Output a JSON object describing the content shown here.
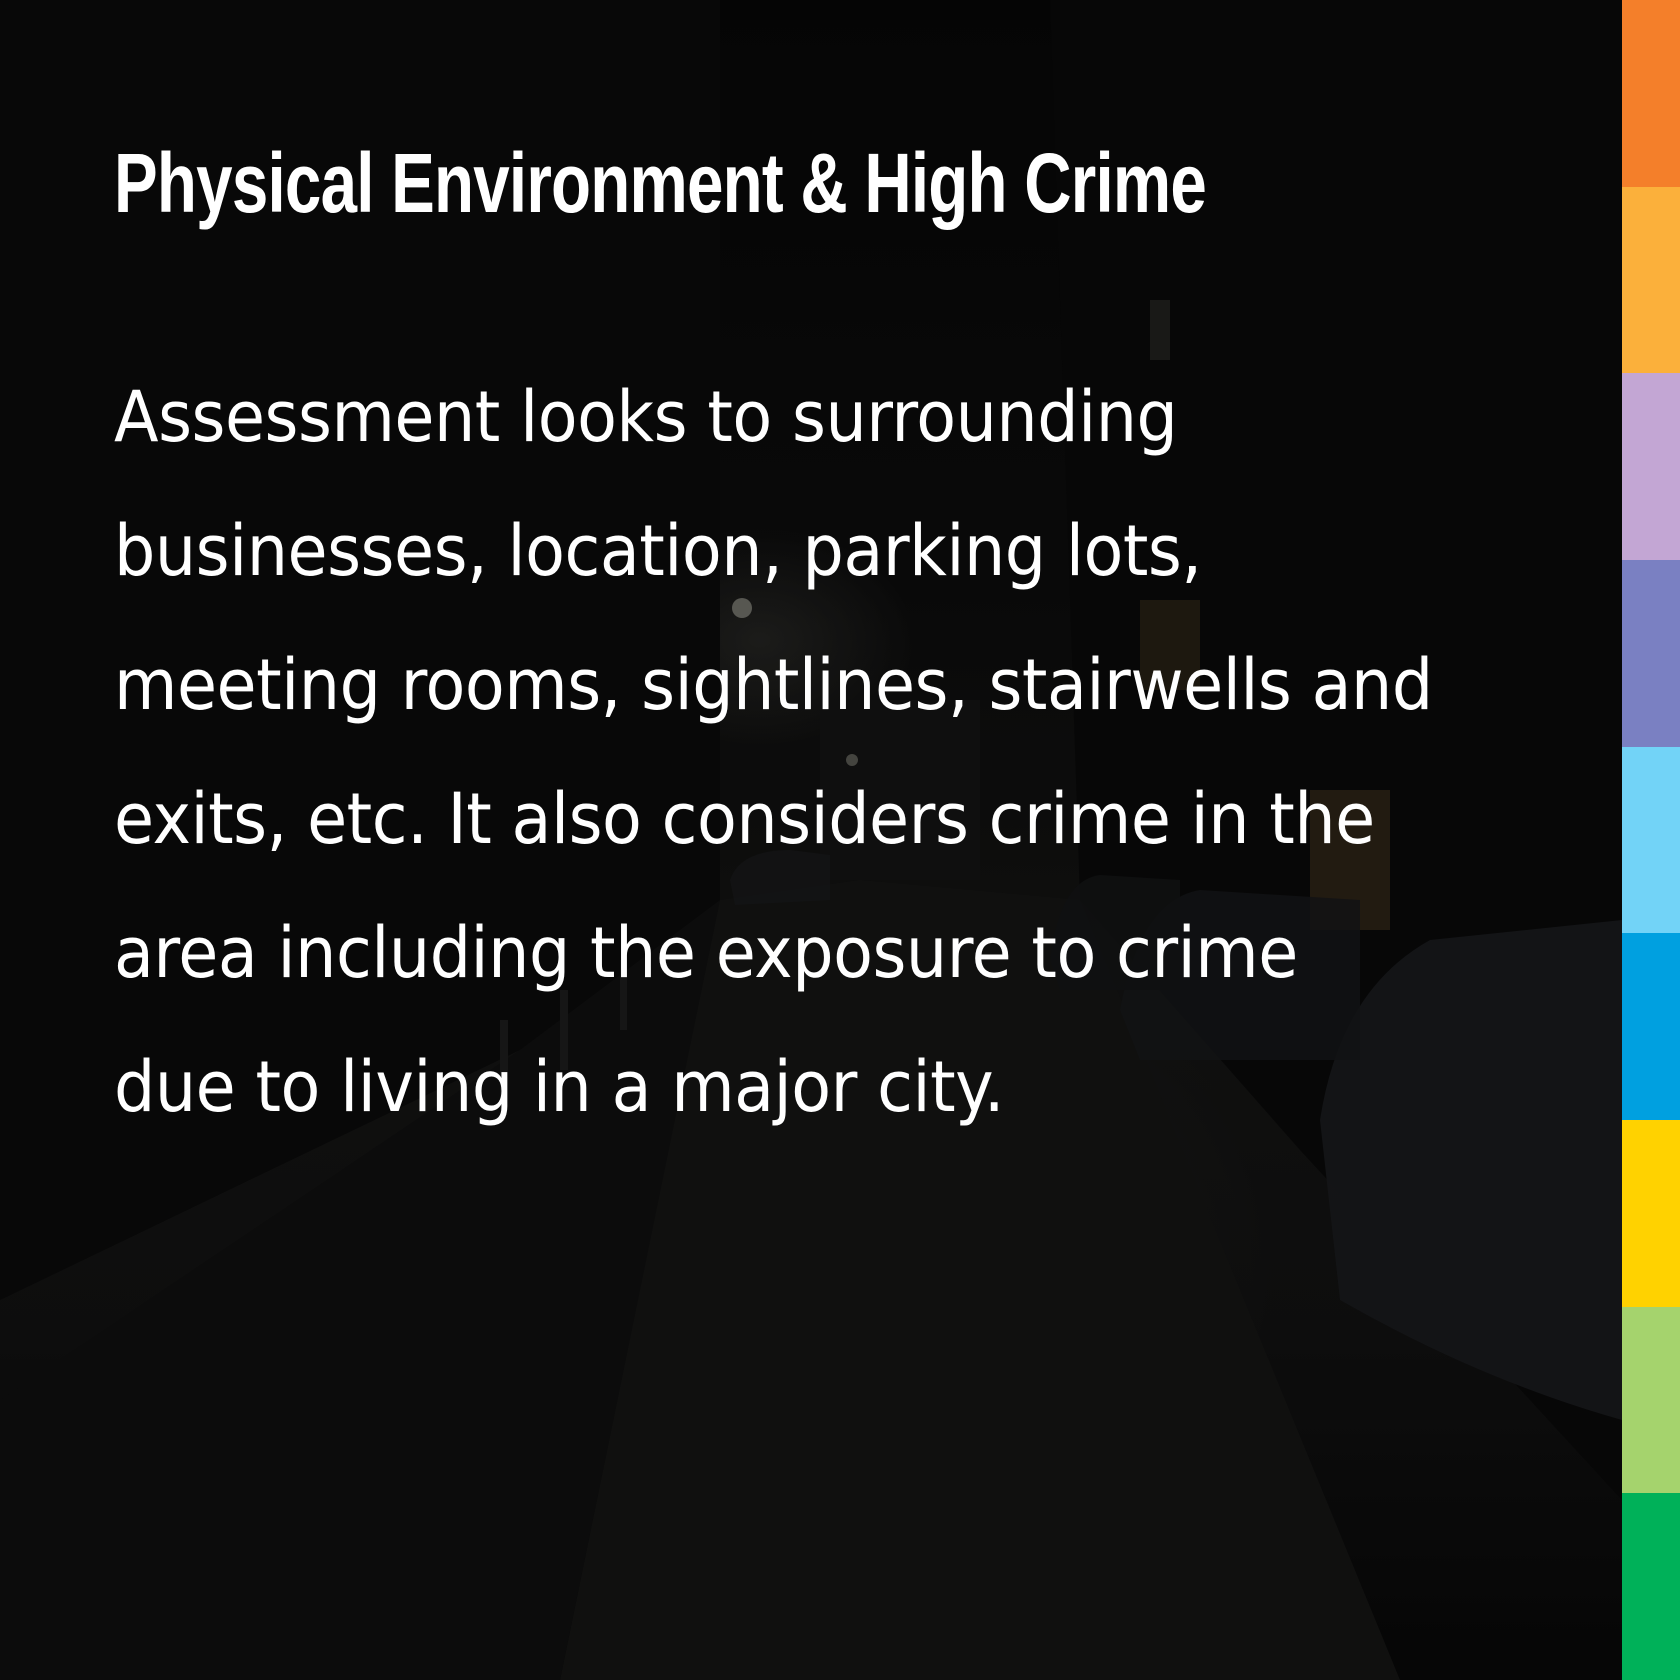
{
  "slide": {
    "title": "Physical Environment & High Crime",
    "body": "Assessment looks to surrounding businesses, location, parking lots, meeting rooms, sightlines, stairwells and exits, etc. It also considers crime in the area including the exposure to crime due to living in a major city."
  },
  "background": {
    "description_icon": "night-street-photo",
    "base_color": "#050505"
  },
  "stripes": [
    "#f47f2a",
    "#fbb03b",
    "#c3a6d4",
    "#7a80c2",
    "#72d3f7",
    "#00a0e0",
    "#ffd200",
    "#a5d36d",
    "#00b159"
  ]
}
